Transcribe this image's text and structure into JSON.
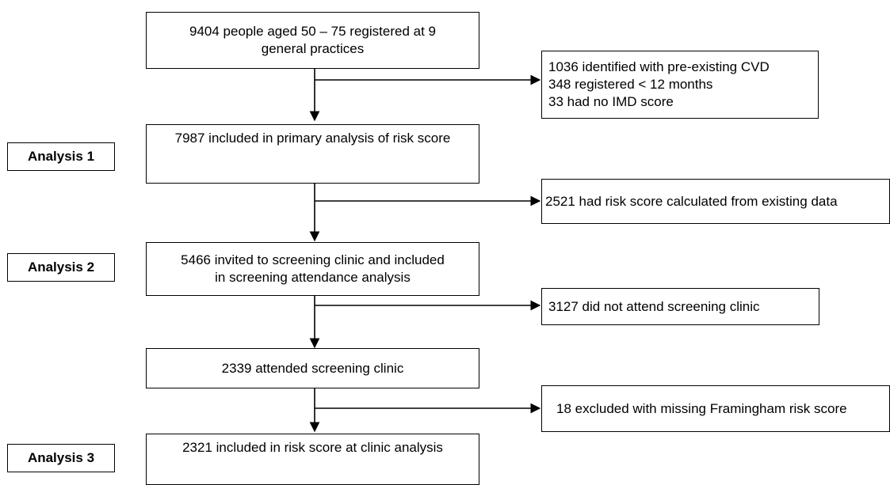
{
  "flow": {
    "start": {
      "lines": [
        "9404 people aged 50 – 75 registered at 9",
        "general practices"
      ]
    },
    "exclusion1": {
      "lines": [
        "1036 identified with pre-existing CVD",
        "348 registered < 12 months",
        "33 had no IMD score"
      ]
    },
    "primary": {
      "lines": [
        "7987 included in primary analysis of risk score"
      ]
    },
    "exclusion2": {
      "lines": [
        "2521 had risk score calculated from existing data"
      ]
    },
    "invited": {
      "lines": [
        "5466 invited to screening clinic and  included",
        "in screening attendance analysis"
      ]
    },
    "exclusion3": {
      "lines": [
        "3127 did not attend screening clinic"
      ]
    },
    "attended": {
      "lines": [
        "2339 attended screening clinic"
      ]
    },
    "exclusion4": {
      "lines": [
        "18 excluded with missing Framingham risk score"
      ]
    },
    "final": {
      "lines": [
        "2321 included in risk score at clinic analysis"
      ]
    }
  },
  "analysis_labels": {
    "a1": "Analysis 1",
    "a2": "Analysis 2",
    "a3": "Analysis 3"
  }
}
